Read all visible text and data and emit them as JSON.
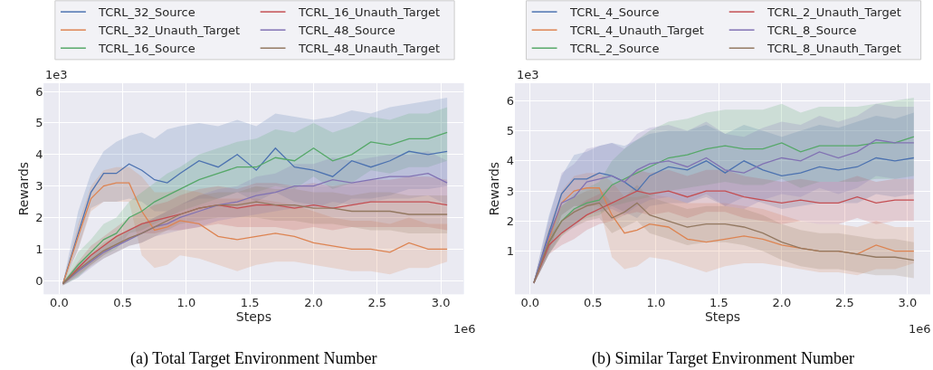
{
  "chart_data": [
    {
      "type": "line",
      "title": "(a) Total Target Environment Number",
      "xlabel": "Steps",
      "ylabel": "Rewards",
      "annotations": [
        "1e3",
        "1e6"
      ],
      "grid": true,
      "legend": "top",
      "xlim": [
        -0.12,
        3.18
      ],
      "ylim": [
        -0.43,
        6.26
      ],
      "xticks": [
        {
          "value": 0,
          "label": "0.0"
        },
        {
          "value": 0.5,
          "label": "0.5"
        },
        {
          "value": 1,
          "label": "1.0"
        },
        {
          "value": 1.5,
          "label": "1.5"
        },
        {
          "value": 2,
          "label": "2.0"
        },
        {
          "value": 2.5,
          "label": "2.5"
        },
        {
          "value": 3,
          "label": "3.0"
        }
      ],
      "yticks": [
        0,
        1,
        2,
        3,
        4,
        5,
        6
      ],
      "x": [
        0.03,
        0.15,
        0.25,
        0.35,
        0.45,
        0.55,
        0.65,
        0.75,
        0.85,
        0.95,
        1.1,
        1.25,
        1.4,
        1.55,
        1.7,
        1.85,
        2.0,
        2.15,
        2.3,
        2.45,
        2.6,
        2.75,
        2.9,
        3.05
      ],
      "series": [
        {
          "name": "TCRL_32_Source",
          "color": "#4c72b0",
          "values": [
            -0.1,
            1.5,
            2.8,
            3.4,
            3.4,
            3.7,
            3.5,
            3.2,
            3.1,
            3.4,
            3.8,
            3.6,
            4.0,
            3.5,
            4.2,
            3.6,
            3.5,
            3.3,
            3.8,
            3.6,
            3.8,
            4.1,
            4.0,
            4.1
          ],
          "lower": [
            -0.1,
            1.0,
            2.3,
            2.5,
            2.5,
            2.6,
            2.5,
            2.2,
            2.2,
            2.4,
            2.6,
            2.6,
            2.8,
            2.5,
            2.8,
            2.5,
            2.4,
            2.3,
            2.6,
            2.6,
            2.7,
            2.9,
            2.9,
            3.0
          ],
          "upper": [
            -0.05,
            2.2,
            3.4,
            4.1,
            4.4,
            4.6,
            4.7,
            4.5,
            4.8,
            4.9,
            5.0,
            4.9,
            5.1,
            4.9,
            5.3,
            5.2,
            5.1,
            5.2,
            5.4,
            5.3,
            5.5,
            5.6,
            5.7,
            5.8
          ]
        },
        {
          "name": "TCRL_32_Unauth_Target",
          "color": "#dd8452",
          "values": [
            -0.1,
            1.4,
            2.6,
            3.0,
            3.1,
            3.1,
            2.2,
            1.6,
            1.7,
            1.9,
            1.8,
            1.4,
            1.3,
            1.4,
            1.5,
            1.4,
            1.2,
            1.1,
            1.0,
            1.0,
            0.9,
            1.2,
            1.0,
            1.0
          ],
          "lower": [
            -0.15,
            1.0,
            2.2,
            2.5,
            2.5,
            2.5,
            0.8,
            0.4,
            0.5,
            0.8,
            0.7,
            0.5,
            0.3,
            0.5,
            0.6,
            0.6,
            0.5,
            0.4,
            0.3,
            0.3,
            0.2,
            0.4,
            0.4,
            0.6
          ],
          "upper": [
            -0.05,
            1.8,
            3.0,
            3.5,
            3.6,
            3.6,
            3.3,
            2.8,
            2.8,
            2.9,
            2.8,
            2.6,
            2.6,
            2.6,
            2.5,
            2.4,
            2.2,
            2.0,
            1.9,
            1.9,
            1.8,
            2.0,
            1.8,
            1.8
          ]
        },
        {
          "name": "TCRL_16_Source",
          "color": "#55a868",
          "values": [
            -0.1,
            0.5,
            0.9,
            1.3,
            1.5,
            2.0,
            2.2,
            2.5,
            2.7,
            2.9,
            3.2,
            3.4,
            3.6,
            3.6,
            3.9,
            3.8,
            4.2,
            3.8,
            4.0,
            4.4,
            4.3,
            4.5,
            4.5,
            4.7
          ],
          "lower": [
            -0.15,
            0.1,
            0.5,
            0.8,
            1.0,
            1.5,
            1.6,
            1.8,
            2.0,
            2.2,
            2.4,
            2.6,
            2.8,
            2.8,
            3.0,
            2.9,
            3.3,
            2.9,
            3.1,
            3.5,
            3.4,
            3.6,
            3.6,
            3.8
          ],
          "upper": [
            -0.05,
            0.9,
            1.3,
            1.8,
            2.0,
            2.5,
            2.8,
            3.1,
            3.4,
            3.6,
            4.0,
            4.2,
            4.4,
            4.5,
            4.8,
            4.7,
            5.0,
            4.7,
            4.9,
            5.2,
            5.1,
            5.3,
            5.3,
            5.5
          ]
        },
        {
          "name": "TCRL_16_Unauth_Target",
          "color": "#c44e52",
          "values": [
            -0.1,
            0.4,
            0.8,
            1.1,
            1.4,
            1.6,
            1.8,
            1.9,
            2.0,
            2.1,
            2.3,
            2.4,
            2.3,
            2.4,
            2.4,
            2.3,
            2.4,
            2.3,
            2.4,
            2.5,
            2.5,
            2.5,
            2.5,
            2.4
          ],
          "lower": [
            -0.15,
            0.2,
            0.5,
            0.8,
            1.1,
            1.3,
            1.5,
            1.5,
            1.6,
            1.6,
            1.7,
            1.8,
            1.7,
            1.7,
            1.7,
            1.6,
            1.7,
            1.6,
            1.7,
            1.7,
            1.7,
            1.7,
            1.7,
            1.6
          ],
          "upper": [
            -0.05,
            0.6,
            1.1,
            1.4,
            1.7,
            2.0,
            2.2,
            2.4,
            2.5,
            2.7,
            2.9,
            3.0,
            2.9,
            3.1,
            3.1,
            3.0,
            3.1,
            3.0,
            3.1,
            3.2,
            3.2,
            3.3,
            3.3,
            3.2
          ]
        },
        {
          "name": "TCRL_48_Source",
          "color": "#8172b3",
          "values": [
            -0.1,
            0.3,
            0.6,
            0.9,
            1.1,
            1.3,
            1.5,
            1.7,
            1.8,
            2.0,
            2.2,
            2.4,
            2.5,
            2.7,
            2.8,
            3.0,
            3.0,
            3.2,
            3.1,
            3.2,
            3.3,
            3.3,
            3.4,
            3.1
          ],
          "lower": [
            -0.15,
            0.1,
            0.4,
            0.7,
            0.9,
            1.1,
            1.2,
            1.4,
            1.5,
            1.6,
            1.7,
            1.9,
            2.0,
            2.1,
            2.2,
            2.3,
            2.3,
            2.5,
            2.4,
            2.5,
            2.6,
            2.6,
            2.7,
            2.4
          ],
          "upper": [
            -0.05,
            0.5,
            0.8,
            1.1,
            1.3,
            1.6,
            1.8,
            2.0,
            2.2,
            2.4,
            2.7,
            2.9,
            3.0,
            3.3,
            3.4,
            3.7,
            3.7,
            3.9,
            3.8,
            3.9,
            4.0,
            4.0,
            4.1,
            3.8
          ]
        },
        {
          "name": "TCRL_48_Unauth_Target",
          "color": "#937860",
          "values": [
            -0.1,
            0.35,
            0.65,
            0.95,
            1.15,
            1.35,
            1.5,
            1.7,
            1.9,
            2.1,
            2.3,
            2.4,
            2.4,
            2.5,
            2.4,
            2.4,
            2.3,
            2.3,
            2.2,
            2.2,
            2.2,
            2.1,
            2.1,
            2.1
          ],
          "lower": [
            -0.15,
            0.15,
            0.45,
            0.7,
            0.9,
            1.1,
            1.2,
            1.4,
            1.6,
            1.8,
            1.9,
            2.0,
            2.0,
            2.0,
            1.9,
            1.9,
            1.8,
            1.8,
            1.7,
            1.6,
            1.6,
            1.5,
            1.5,
            1.5
          ],
          "upper": [
            -0.05,
            0.55,
            0.85,
            1.2,
            1.4,
            1.6,
            1.8,
            2.0,
            2.2,
            2.4,
            2.7,
            2.8,
            2.8,
            3.0,
            2.9,
            2.9,
            2.8,
            2.8,
            2.7,
            2.8,
            2.8,
            2.7,
            2.7,
            2.7
          ]
        }
      ]
    },
    {
      "type": "line",
      "title": "(b) Similar Target Environment Number",
      "xlabel": "Steps",
      "ylabel": "Rewards",
      "annotations": [
        "1e3",
        "1e6"
      ],
      "grid": true,
      "legend": "top",
      "xlim": [
        -0.12,
        3.18
      ],
      "ylim": [
        -0.43,
        6.58
      ],
      "xticks": [
        {
          "value": 0,
          "label": "0.0"
        },
        {
          "value": 0.5,
          "label": "0.5"
        },
        {
          "value": 1,
          "label": "1.0"
        },
        {
          "value": 1.5,
          "label": "1.5"
        },
        {
          "value": 2,
          "label": "2.0"
        },
        {
          "value": 2.5,
          "label": "2.5"
        },
        {
          "value": 3,
          "label": "3.0"
        }
      ],
      "yticks": [
        1,
        2,
        3,
        4,
        5,
        6
      ],
      "x": [
        0.03,
        0.15,
        0.25,
        0.35,
        0.45,
        0.55,
        0.65,
        0.75,
        0.85,
        0.95,
        1.1,
        1.25,
        1.4,
        1.55,
        1.7,
        1.85,
        2.0,
        2.15,
        2.3,
        2.45,
        2.6,
        2.75,
        2.9,
        3.05
      ],
      "series": [
        {
          "name": "TCRL_4_Source",
          "color": "#4c72b0",
          "values": [
            -0.05,
            1.6,
            2.9,
            3.4,
            3.4,
            3.6,
            3.5,
            3.3,
            3.0,
            3.5,
            3.8,
            3.7,
            4.0,
            3.6,
            4.0,
            3.7,
            3.5,
            3.6,
            3.8,
            3.7,
            3.8,
            4.1,
            4.0,
            4.1
          ],
          "lower": [
            -0.1,
            1.0,
            2.2,
            2.5,
            2.5,
            2.6,
            2.5,
            2.3,
            2.1,
            2.5,
            2.6,
            2.6,
            2.8,
            2.5,
            2.8,
            2.6,
            2.4,
            2.5,
            2.6,
            2.6,
            2.6,
            2.9,
            2.8,
            2.9
          ],
          "upper": [
            0,
            2.2,
            3.5,
            4.2,
            4.3,
            4.5,
            4.6,
            4.5,
            4.7,
            4.9,
            5.0,
            5.0,
            5.2,
            4.9,
            5.2,
            5.0,
            4.8,
            5.0,
            5.2,
            5.1,
            5.3,
            5.5,
            5.4,
            5.6
          ]
        },
        {
          "name": "TCRL_4_Unauth_Target",
          "color": "#dd8452",
          "values": [
            -0.05,
            1.4,
            2.6,
            3.0,
            3.1,
            3.1,
            2.2,
            1.6,
            1.7,
            1.9,
            1.8,
            1.4,
            1.3,
            1.4,
            1.5,
            1.4,
            1.2,
            1.1,
            1.0,
            1.0,
            0.9,
            1.2,
            1.0,
            1.0
          ],
          "lower": [
            -0.1,
            1.0,
            2.2,
            2.5,
            2.5,
            2.5,
            0.8,
            0.4,
            0.5,
            0.8,
            0.7,
            0.5,
            0.3,
            0.5,
            0.6,
            0.6,
            0.5,
            0.4,
            0.3,
            0.3,
            0.2,
            0.4,
            0.4,
            0.6
          ],
          "upper": [
            0,
            1.8,
            3.0,
            3.5,
            3.6,
            3.6,
            3.3,
            2.8,
            2.8,
            2.9,
            2.8,
            2.6,
            2.6,
            2.6,
            2.5,
            2.4,
            2.2,
            2.0,
            1.9,
            1.9,
            1.8,
            2.0,
            1.8,
            1.8
          ]
        },
        {
          "name": "TCRL_2_Source",
          "color": "#55a868",
          "values": [
            -0.05,
            1.3,
            2.0,
            2.4,
            2.6,
            2.7,
            3.2,
            3.4,
            3.6,
            3.8,
            4.1,
            4.2,
            4.4,
            4.5,
            4.4,
            4.4,
            4.6,
            4.3,
            4.5,
            4.5,
            4.5,
            4.6,
            4.6,
            4.8
          ],
          "lower": [
            -0.1,
            0.9,
            1.5,
            1.9,
            2.1,
            2.2,
            2.5,
            2.6,
            2.7,
            2.8,
            3.0,
            3.1,
            3.2,
            3.3,
            3.2,
            3.2,
            3.4,
            3.1,
            3.3,
            3.3,
            3.3,
            3.4,
            3.4,
            3.5
          ],
          "upper": [
            0,
            1.7,
            2.5,
            2.9,
            3.1,
            3.3,
            4.0,
            4.4,
            4.7,
            5.0,
            5.3,
            5.4,
            5.6,
            5.7,
            5.7,
            5.7,
            5.9,
            5.6,
            5.8,
            5.8,
            5.8,
            5.9,
            6.0,
            6.1
          ]
        },
        {
          "name": "TCRL_2_Unauth_Target",
          "color": "#c44e52",
          "values": [
            -0.05,
            1.2,
            1.6,
            1.9,
            2.2,
            2.4,
            2.6,
            2.8,
            3.0,
            2.9,
            3.0,
            2.8,
            3.0,
            3.0,
            2.8,
            2.7,
            2.6,
            2.7,
            2.6,
            2.6,
            2.8,
            2.6,
            2.7,
            2.7
          ],
          "lower": [
            -0.1,
            0.9,
            1.2,
            1.4,
            1.7,
            1.9,
            2.0,
            2.2,
            2.3,
            2.2,
            2.3,
            2.1,
            2.3,
            2.3,
            2.1,
            2.0,
            1.9,
            2.0,
            1.9,
            1.9,
            2.1,
            1.9,
            2.0,
            2.0
          ],
          "upper": [
            0,
            1.5,
            2.0,
            2.4,
            2.7,
            2.9,
            3.2,
            3.4,
            3.7,
            3.6,
            3.7,
            3.5,
            3.7,
            3.7,
            3.5,
            3.4,
            3.3,
            3.4,
            3.3,
            3.3,
            3.5,
            3.3,
            3.4,
            3.4
          ]
        },
        {
          "name": "TCRL_8_Source",
          "color": "#8172b3",
          "values": [
            -0.05,
            1.5,
            2.6,
            2.8,
            3.3,
            3.4,
            3.5,
            3.3,
            3.7,
            3.9,
            4.0,
            3.8,
            4.1,
            3.7,
            3.6,
            3.9,
            4.1,
            4.0,
            4.3,
            4.1,
            4.3,
            4.7,
            4.6,
            4.6
          ],
          "lower": [
            -0.1,
            0.9,
            1.6,
            1.8,
            2.2,
            2.3,
            2.4,
            2.2,
            2.5,
            2.7,
            2.8,
            2.6,
            2.9,
            2.5,
            2.4,
            2.7,
            2.9,
            2.8,
            3.1,
            2.9,
            3.1,
            3.5,
            3.4,
            3.4
          ],
          "upper": [
            0,
            2.1,
            3.6,
            3.9,
            4.4,
            4.5,
            4.6,
            4.4,
            4.9,
            5.1,
            5.2,
            5.0,
            5.3,
            4.9,
            4.8,
            5.1,
            5.3,
            5.2,
            5.5,
            5.3,
            5.5,
            5.9,
            5.8,
            5.8
          ]
        },
        {
          "name": "TCRL_8_Unauth_Target",
          "color": "#937860",
          "values": [
            -0.05,
            1.3,
            2.0,
            2.3,
            2.5,
            2.6,
            2.1,
            2.3,
            2.6,
            2.2,
            2.0,
            1.8,
            1.9,
            1.9,
            1.8,
            1.6,
            1.3,
            1.1,
            1.0,
            1.0,
            0.9,
            0.8,
            0.8,
            0.7
          ],
          "lower": [
            -0.1,
            0.9,
            1.5,
            1.8,
            2.0,
            2.1,
            1.6,
            1.8,
            2.0,
            1.6,
            1.4,
            1.2,
            1.3,
            1.3,
            1.2,
            1.0,
            0.7,
            0.5,
            0.4,
            0.4,
            0.3,
            0.2,
            0.2,
            0.1
          ],
          "upper": [
            0,
            1.7,
            2.5,
            2.8,
            3.0,
            3.1,
            2.6,
            2.8,
            3.2,
            2.8,
            2.6,
            2.4,
            2.5,
            2.5,
            2.4,
            2.2,
            1.9,
            1.7,
            1.6,
            1.6,
            1.5,
            1.4,
            1.4,
            1.3
          ]
        }
      ]
    }
  ]
}
